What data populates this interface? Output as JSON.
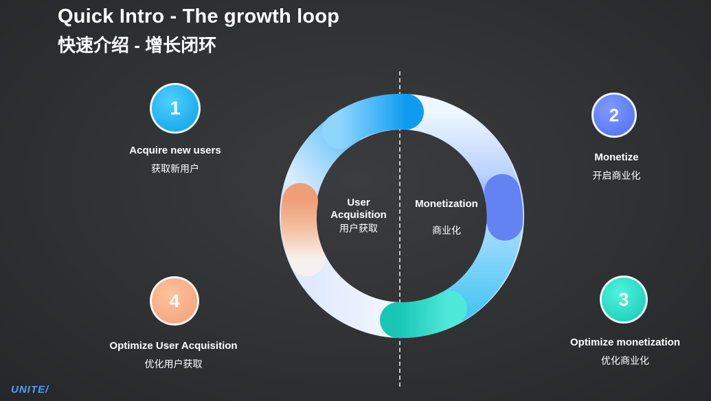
{
  "slide": {
    "title_en": "Quick Intro - The growth loop",
    "title_zh": "快速介绍 - 增长闭环"
  },
  "center": {
    "left_label_line1": "User",
    "left_label_line2": "Acquisition",
    "left_label_zh": "用户获取",
    "right_label": "Monetization",
    "right_label_zh": "商业化"
  },
  "steps": [
    {
      "number": "1",
      "label_en": "Acquire new users",
      "label_zh": "获取新用户",
      "color": "#12a8f0"
    },
    {
      "number": "2",
      "label_en": "Monetize",
      "label_zh": "开启商业化",
      "color": "#5a78f5"
    },
    {
      "number": "3",
      "label_en": "Optimize monetization",
      "label_zh": "优化商业化",
      "color": "#1ed6c2"
    },
    {
      "number": "4",
      "label_en": "Optimize User Acquisition",
      "label_zh": "优化用户获取",
      "color": "#f3aa82"
    }
  ],
  "logo": "UNITE/"
}
